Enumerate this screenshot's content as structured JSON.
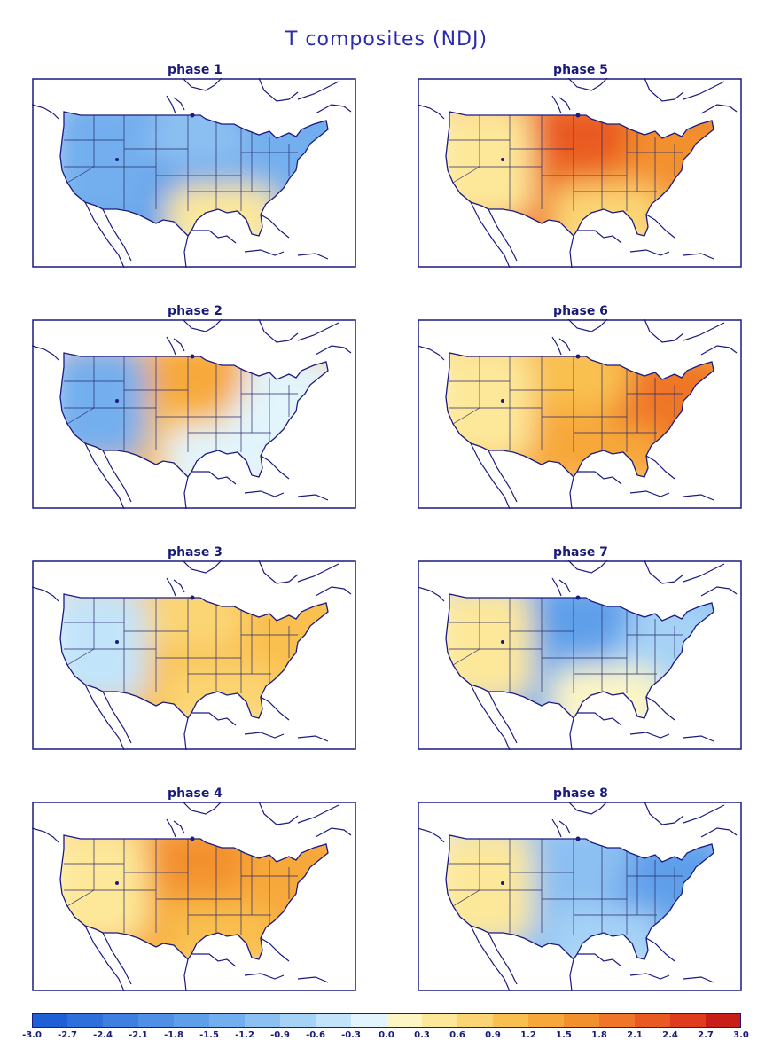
{
  "title": "T composites (NDJ)",
  "panels": [
    {
      "label": "phase 1",
      "west": -1.3,
      "center": -1.6,
      "east": -1.4,
      "south": 0.5,
      "north": -1.2
    },
    {
      "label": "phase 5",
      "west": 0.3,
      "center": 1.8,
      "east": 1.5,
      "south": 0.8,
      "north": 2.1
    },
    {
      "label": "phase 2",
      "west": -1.5,
      "center": 0.9,
      "east": -0.3,
      "south": -0.3,
      "north": 1.3
    },
    {
      "label": "phase 6",
      "west": 0.5,
      "center": 1.4,
      "east": 1.8,
      "south": 1.2,
      "north": 0.9
    },
    {
      "label": "phase 3",
      "west": -0.4,
      "center": 0.9,
      "east": 1.1,
      "south": 0.8,
      "north": 0.7
    },
    {
      "label": "phase 7",
      "west": 0.3,
      "center": -1.4,
      "east": -0.7,
      "south": 0.2,
      "north": -1.6
    },
    {
      "label": "phase 4",
      "west": 0.5,
      "center": 1.2,
      "east": 1.4,
      "south": 1.0,
      "north": 1.6
    },
    {
      "label": "phase 8",
      "west": 0.3,
      "center": -1.2,
      "east": -1.8,
      "south": -0.9,
      "north": -1.0
    }
  ],
  "colorbar": {
    "ticks": [
      "-3.0",
      "-2.7",
      "-2.4",
      "-2.1",
      "-1.8",
      "-1.5",
      "-1.2",
      "-0.9",
      "-0.6",
      "-0.3",
      "0.0",
      "0.3",
      "0.6",
      "0.9",
      "1.2",
      "1.5",
      "1.8",
      "2.1",
      "2.4",
      "2.7",
      "3.0"
    ],
    "colors": [
      "#1f5fd6",
      "#2f6fdc",
      "#3f7fe2",
      "#4f8fe6",
      "#5f9fea",
      "#73afee",
      "#8cc0f2",
      "#a6d2f6",
      "#c2e4fa",
      "#e2f4fc",
      "#fdf6c4",
      "#fde89a",
      "#fbd573",
      "#f9c04f",
      "#f7a83a",
      "#f3902e",
      "#ef7628",
      "#e95a22",
      "#de3c1c",
      "#c71e18"
    ]
  }
}
